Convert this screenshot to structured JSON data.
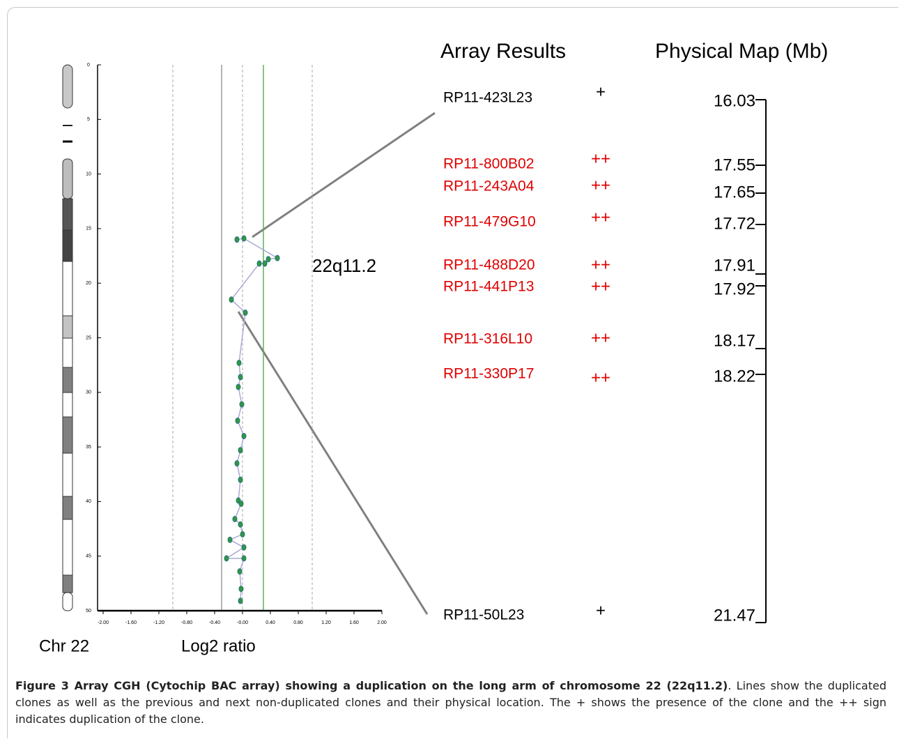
{
  "chart_data": {
    "type": "line",
    "xlabel": "Log2 ratio",
    "annotation": "22q11.2",
    "color": "#2e9a3c",
    "line_color": "#a9a9d6",
    "x": [
      -0.08,
      0.02,
      0.5,
      0.37,
      0.32,
      0.24,
      -0.16,
      0.04,
      -0.05,
      -0.03,
      -0.06,
      -0.01,
      -0.07,
      0.02,
      -0.03,
      -0.08,
      -0.03,
      -0.06,
      -0.02,
      -0.11,
      -0.03,
      0.0,
      -0.18,
      0.02,
      -0.23,
      0.02,
      -0.04,
      -0.02,
      -0.03
    ],
    "values": [
      16.0,
      15.9,
      17.7,
      17.8,
      18.2,
      18.2,
      21.5,
      22.7,
      27.3,
      28.6,
      29.5,
      31.1,
      32.6,
      34.0,
      35.3,
      36.5,
      38.0,
      39.9,
      40.2,
      41.6,
      42.1,
      43.0,
      43.5,
      44.2,
      45.2,
      45.2,
      46.4,
      48.0,
      49.1
    ],
    "xlim": [
      -2,
      2
    ],
    "ylim": [
      0,
      50
    ],
    "y_reversed": true,
    "xticks": [
      {
        "value": -2,
        "label": "-2.00"
      },
      {
        "value": -1.6,
        "label": "-1.60"
      },
      {
        "value": -1.2,
        "label": "-1.20"
      },
      {
        "value": -0.8,
        "label": "-0.80"
      },
      {
        "value": -0.4,
        "label": "-0.40"
      },
      {
        "value": 0,
        "label": "-0.00"
      },
      {
        "value": 0.4,
        "label": "0.40"
      },
      {
        "value": 0.8,
        "label": "0.80"
      },
      {
        "value": 1.2,
        "label": "1.20"
      },
      {
        "value": 1.6,
        "label": "1.60"
      },
      {
        "value": 2,
        "label": "2.00"
      }
    ],
    "yticks": [
      0,
      5,
      10,
      15,
      20,
      25,
      30,
      35,
      40,
      45,
      50
    ],
    "dashed_lines": [
      -1,
      0,
      1
    ],
    "threshold_lines": [
      {
        "value": -0.3,
        "color": "#9a9a9a"
      },
      {
        "value": 0.3,
        "color": "#5fae5f"
      }
    ]
  },
  "chromosome_label": "Chr 22",
  "array_results": {
    "title": "Array Results",
    "map_title": "Physical Map (Mb)",
    "clones": [
      {
        "name": "RP11-423L23",
        "result": "+",
        "position": 16.03,
        "color": "#000000"
      },
      {
        "name": "RP11-800B02",
        "result": "++",
        "position": 17.55,
        "color": "#e00000"
      },
      {
        "name": "RP11-243A04",
        "result": "++",
        "position": 17.65,
        "color": "#e00000"
      },
      {
        "name": "RP11-479G10",
        "result": "++",
        "position": 17.72,
        "color": "#e00000"
      },
      {
        "name": "RP11-488D20",
        "result": "++",
        "position": 17.91,
        "color": "#e00000"
      },
      {
        "name": "RP11-441P13",
        "result": "++",
        "position": 17.92,
        "color": "#e00000"
      },
      {
        "name": "RP11-316L10",
        "result": "++",
        "position": 18.17,
        "color": "#e00000"
      },
      {
        "name": "RP11-330P17",
        "result": "++",
        "position": 18.22,
        "color": "#e00000"
      },
      {
        "name": "RP11-50L23",
        "result": "+",
        "position": 21.47,
        "color": "#000000"
      }
    ]
  },
  "caption": {
    "title": "Figure 3 Array CGH (Cytochip BAC array) showing a duplication on the long arm of chromosome 22 (22q11.2)",
    "text": ". Lines show the duplicated clones as well as the previous and next non-duplicated clones and their physical location. The + shows the presence of the clone and the ++ sign indicates duplication of the clone."
  }
}
